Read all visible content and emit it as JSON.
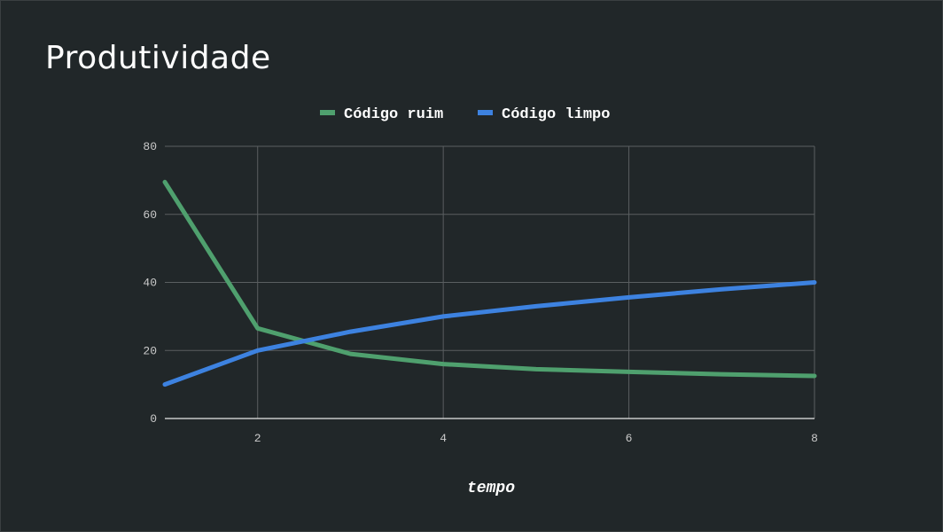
{
  "slide": {
    "title": "Produtividade"
  },
  "chart_data": {
    "type": "line",
    "x": [
      1,
      2,
      3,
      4,
      5,
      6,
      7,
      8
    ],
    "xlim": [
      1,
      8
    ],
    "ylim": [
      0,
      80
    ],
    "xticks": [
      2,
      4,
      6,
      8
    ],
    "yticks": [
      0,
      20,
      40,
      60,
      80
    ],
    "xlabel": "tempo",
    "ylabel": "",
    "grid": true,
    "legend_position": "top-center",
    "series": [
      {
        "name": "Código ruim",
        "color": "#4fa06e",
        "values": [
          69.5,
          26.5,
          19,
          16,
          14.5,
          13.7,
          13,
          12.5
        ]
      },
      {
        "name": "Código limpo",
        "color": "#3d82e0",
        "values": [
          10,
          20,
          25.5,
          30,
          33,
          35.6,
          38,
          40
        ]
      }
    ]
  }
}
